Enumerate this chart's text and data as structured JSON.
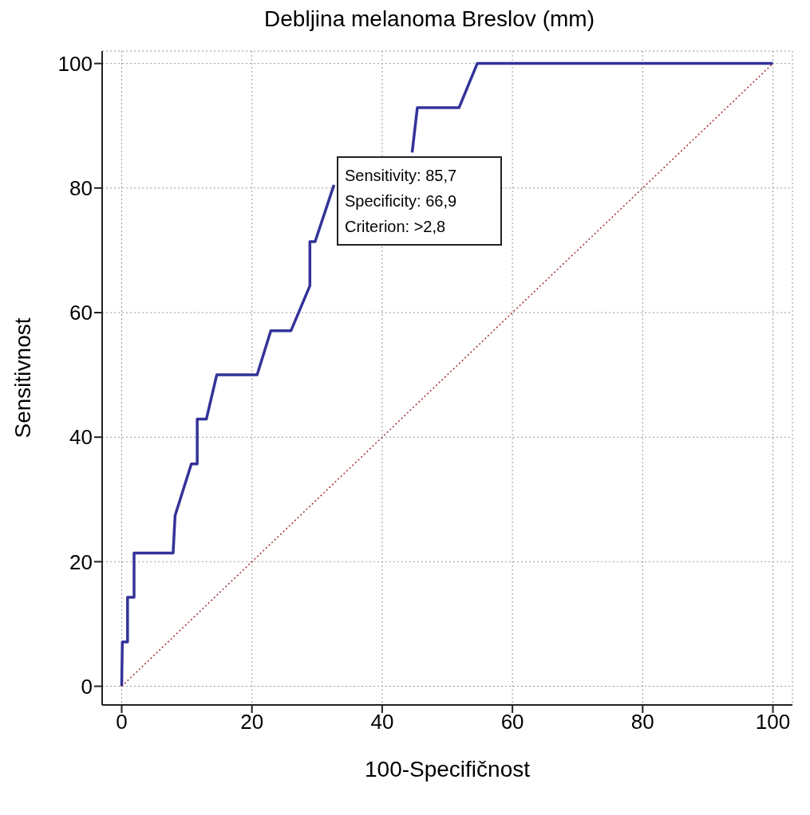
{
  "chart_data": {
    "type": "line",
    "title": "Debljina melanoma Breslov (mm)",
    "xlabel": "100-Specifičnost",
    "ylabel": "Sensitivnost",
    "xlim": [
      -3,
      103
    ],
    "ylim": [
      -3,
      102
    ],
    "xticks": [
      0,
      20,
      40,
      60,
      80,
      100
    ],
    "yticks": [
      0,
      20,
      40,
      60,
      80,
      100
    ],
    "grid": true,
    "marker": "none",
    "series": [
      {
        "color": "#333399",
        "line_style": "solid",
        "x": [
          0,
          0.1,
          0.9,
          0.9,
          1.9,
          1.9,
          7.9,
          8.2,
          10.7,
          11.6,
          11.6,
          13.0,
          14.6,
          20.8,
          22.9,
          26.0,
          28.9,
          28.9,
          29.7,
          32.6,
          33.1,
          44.6,
          45.4,
          51.8,
          54.6,
          100
        ],
        "values": [
          0,
          7.1,
          7.1,
          14.3,
          14.3,
          21.4,
          21.4,
          27.4,
          35.7,
          35.7,
          42.9,
          42.9,
          50,
          50,
          57.1,
          57.1,
          64.3,
          71.4,
          71.4,
          80.5,
          null,
          85.7,
          92.9,
          92.9,
          100,
          100
        ]
      },
      {
        "color": "#a52a2a",
        "line_style": "dotted",
        "x": [
          0,
          100
        ],
        "values": [
          0,
          100
        ]
      }
    ],
    "annotations": [
      "Sensitivity: 85,7\nSpecificity: 66,9\nCriterion: >2,8"
    ]
  }
}
